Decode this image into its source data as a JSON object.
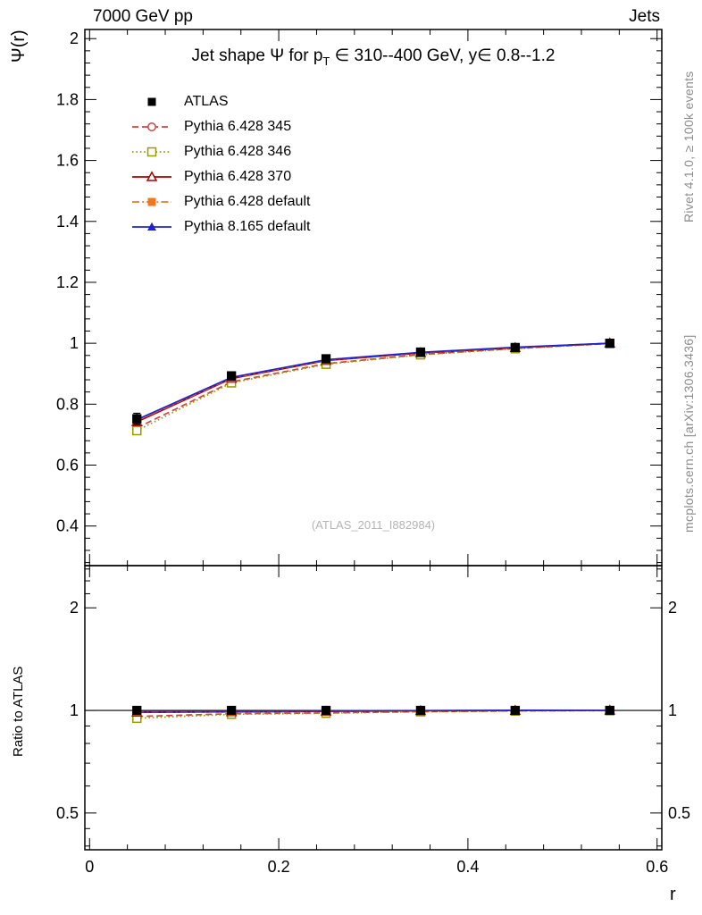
{
  "header": {
    "left": "7000 GeV pp",
    "right": "Jets"
  },
  "title": {
    "part1": "Jet shape Ψ for p",
    "sub": "T",
    "part2": " ∈ 310--400 GeV, y∈ 0.8--1.2"
  },
  "watermark": "(ATLAS_2011_I882984)",
  "side_labels": {
    "top": "Rivet 4.1.0, ≥ 100k events",
    "bottom": "mcplots.cern.ch [arXiv:1306.3436]"
  },
  "axis_labels": {
    "y_main": "Ψ(r)",
    "y_ratio": "Ratio to ATLAS",
    "x": "r"
  },
  "chart_data": {
    "type": "line",
    "x": [
      0.05,
      0.15,
      0.25,
      0.35,
      0.45,
      0.55
    ],
    "xlim": [
      0,
      0.6
    ],
    "xticks": [
      0,
      0.2,
      0.4,
      0.6
    ],
    "xtick_labels": [
      "0",
      "0.2",
      "0.4",
      "0.6"
    ],
    "main_panel": {
      "ylim": [
        0.27,
        2.03
      ],
      "yticks": [
        0.4,
        0.6,
        0.8,
        1,
        1.2,
        1.4,
        1.6,
        1.8,
        2
      ],
      "ytick_labels": [
        "0.4",
        "0.6",
        "0.8",
        "1",
        "1.2",
        "1.4",
        "1.6",
        "1.8",
        "2"
      ],
      "grid": false
    },
    "ratio_panel": {
      "scale": "log",
      "ylim": [
        0.39,
        2.66
      ],
      "yticks": [
        0.5,
        1,
        2
      ],
      "ytick_labels": [
        "0.5",
        "1",
        "2"
      ],
      "reference": 1
    },
    "legend_position": "top-left",
    "series": [
      {
        "label": "ATLAS",
        "is_data": true,
        "color": "#000000",
        "marker": "square",
        "line": "none",
        "values": [
          0.752,
          0.893,
          0.949,
          0.971,
          0.986,
          1.0
        ],
        "errors": [
          0.018,
          0.012,
          0.009,
          0.006,
          0.005,
          0.004
        ]
      },
      {
        "label": "Pythia 6.428 345",
        "color": "#cc4444",
        "marker": "circle-open",
        "line": "dashed",
        "values": [
          0.722,
          0.873,
          0.933,
          0.963,
          0.983,
          0.999
        ]
      },
      {
        "label": "Pythia 6.428 346",
        "color": "#999900",
        "marker": "square-open",
        "line": "dotted",
        "values": [
          0.713,
          0.87,
          0.931,
          0.962,
          0.982,
          0.999
        ]
      },
      {
        "label": "Pythia 6.428 370",
        "color": "#aa0000",
        "marker": "triangle-open",
        "line": "solid",
        "values": [
          0.742,
          0.884,
          0.943,
          0.968,
          0.985,
          1.0
        ]
      },
      {
        "label": "Pythia 6.428 default",
        "color": "#ee7722",
        "marker": "square",
        "line": "dashdot",
        "values": [
          0.746,
          0.886,
          0.945,
          0.969,
          0.986,
          1.0
        ]
      },
      {
        "label": "Pythia 8.165 default",
        "color": "#2222cc",
        "marker": "triangle",
        "line": "solid",
        "values": [
          0.749,
          0.888,
          0.946,
          0.97,
          0.987,
          1.0
        ]
      }
    ]
  }
}
